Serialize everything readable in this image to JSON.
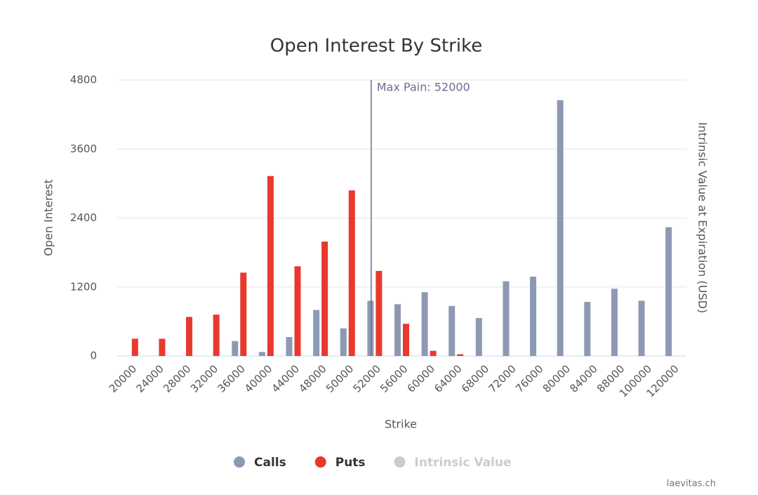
{
  "chart_data": {
    "type": "bar",
    "title": "Open Interest By Strike",
    "x_label": "Strike",
    "y_label": "Open Interest",
    "y2_label": "Intrinsic Value at Expiration (USD)",
    "categories": [
      "20000",
      "24000",
      "28000",
      "32000",
      "36000",
      "40000",
      "44000",
      "48000",
      "50000",
      "52000",
      "56000",
      "60000",
      "64000",
      "68000",
      "72000",
      "76000",
      "80000",
      "84000",
      "88000",
      "100000",
      "120000"
    ],
    "series": [
      {
        "name": "Calls",
        "color": "#8d99b3",
        "values": [
          0,
          0,
          0,
          0,
          260,
          70,
          330,
          800,
          480,
          960,
          900,
          1110,
          870,
          660,
          1300,
          1380,
          4450,
          940,
          1170,
          960,
          2240
        ]
      },
      {
        "name": "Puts",
        "color": "#e8392f",
        "values": [
          300,
          300,
          680,
          720,
          1450,
          3130,
          1560,
          1990,
          2880,
          1480,
          560,
          90,
          30,
          0,
          0,
          0,
          0,
          0,
          0,
          0,
          0
        ]
      },
      {
        "name": "Intrinsic Value",
        "color": "#cccccc",
        "visible": false
      }
    ],
    "ylim": [
      0,
      4800
    ],
    "yticks": [
      0,
      1200,
      2400,
      3600,
      4800
    ],
    "grid": true,
    "annotation": {
      "label": "Max Pain: 52000",
      "x": "52000",
      "color": "#6b6b8f"
    },
    "credit": "laevitas.ch"
  }
}
